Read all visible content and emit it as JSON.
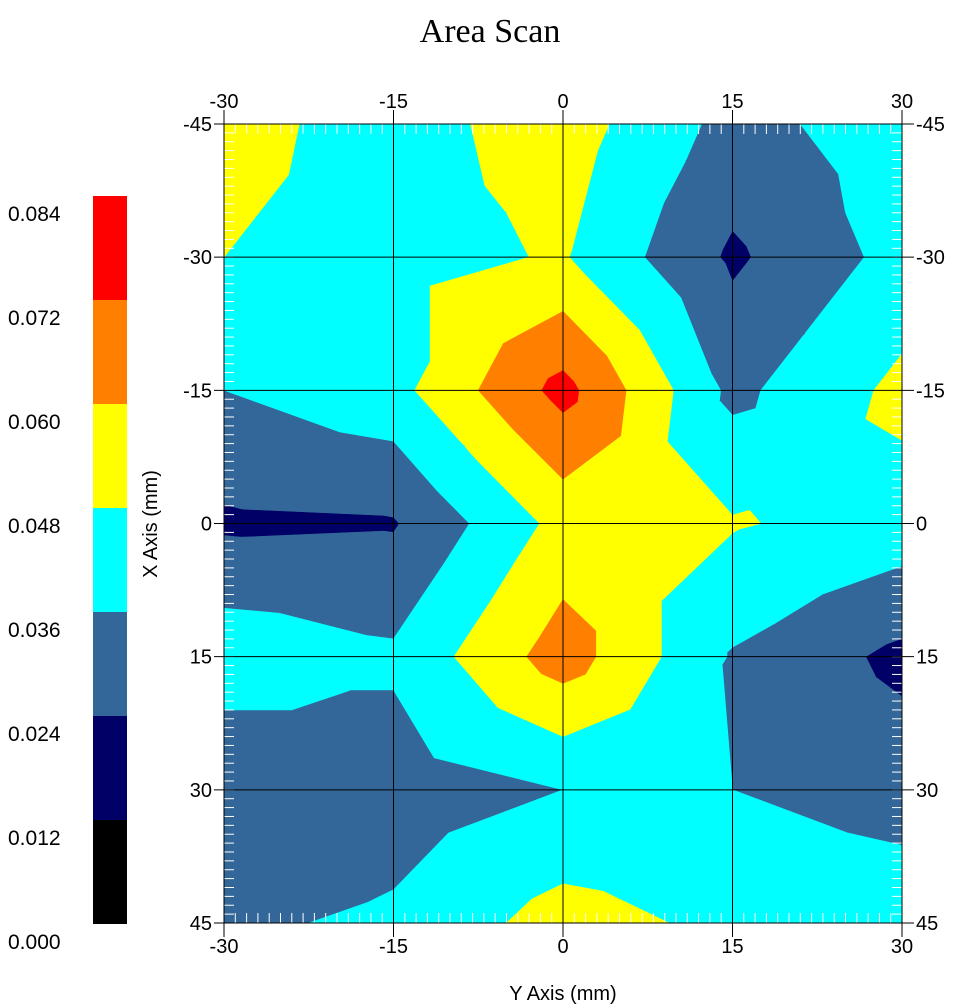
{
  "chart_data": {
    "type": "heatmap",
    "title": "Area Scan",
    "xlabel": "Y Axis (mm)",
    "ylabel": "X Axis (mm)",
    "x": [
      -30,
      -15,
      0,
      15,
      30
    ],
    "y": [
      -45,
      -30,
      -15,
      0,
      15,
      30,
      45
    ],
    "xlim": [
      -30,
      30
    ],
    "ylim": [
      -45,
      45
    ],
    "y_axis_inverted": true,
    "x_ticks": [
      "-30",
      "-15",
      "0",
      "15",
      "30"
    ],
    "y_ticks": [
      "-45",
      "-30",
      "-15",
      "0",
      "15",
      "30",
      "45"
    ],
    "grid": true,
    "colorbar": {
      "ticks": [
        "0.000",
        "0.012",
        "0.024",
        "0.036",
        "0.048",
        "0.060",
        "0.072",
        "0.084"
      ],
      "levels": [
        0.0,
        0.012,
        0.024,
        0.036,
        0.048,
        0.06,
        0.072,
        0.084
      ],
      "colors": [
        "#000000",
        "#000066",
        "#336699",
        "#00ffff",
        "#ffff00",
        "#ff8000",
        "#ff0000"
      ]
    },
    "values": [
      [
        0.052,
        0.043,
        0.054,
        0.032,
        0.042
      ],
      [
        0.048,
        0.044,
        0.049,
        0.022,
        0.04
      ],
      [
        0.036,
        0.044,
        0.076,
        0.033,
        0.051
      ],
      [
        0.022,
        0.023,
        0.052,
        0.049,
        0.043
      ],
      [
        0.044,
        0.038,
        0.066,
        0.035,
        0.021
      ],
      [
        0.024,
        0.03,
        0.036,
        0.036,
        0.031
      ],
      [
        0.034,
        0.038,
        0.053,
        0.045,
        0.043
      ]
    ]
  }
}
